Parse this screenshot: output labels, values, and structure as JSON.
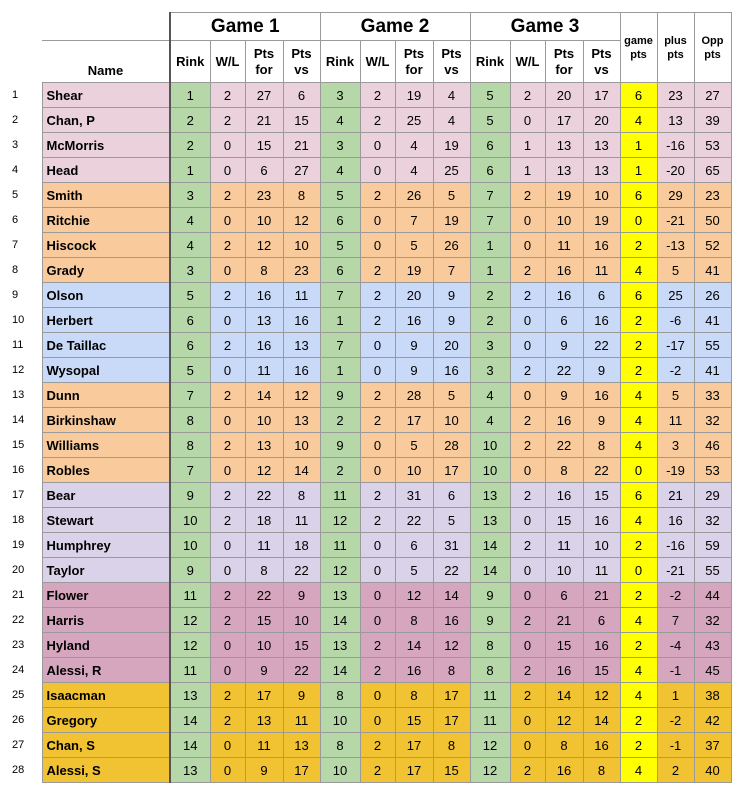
{
  "header": {
    "games": [
      "Game 1",
      "Game 2",
      "Game 3"
    ],
    "name_label": "Name",
    "game_cols": [
      "Rink",
      "W/L",
      "Pts\nfor",
      "Pts\nvs"
    ],
    "summary_cols": [
      "game\npts",
      "plus\npts",
      "Opp\npts"
    ]
  },
  "colors": {
    "pink": "#ead1dc",
    "orange": "#f9cb9c",
    "blue": "#c9daf8",
    "lavender": "#d9d2e9",
    "rose": "#d5a6bd",
    "gold": "#f1c232",
    "rink_green": "#b6d7a8",
    "game_pts_yellow": "#ffff00"
  },
  "rows": [
    {
      "n": "1",
      "name": "Shear",
      "group": "pink",
      "g": [
        [
          "1",
          "2",
          "27",
          "6"
        ],
        [
          "3",
          "2",
          "19",
          "4"
        ],
        [
          "5",
          "2",
          "20",
          "17"
        ]
      ],
      "gp": "6",
      "plus": "23",
      "opp": "27"
    },
    {
      "n": "2",
      "name": "Chan, P",
      "group": "pink",
      "g": [
        [
          "2",
          "2",
          "21",
          "15"
        ],
        [
          "4",
          "2",
          "25",
          "4"
        ],
        [
          "5",
          "0",
          "17",
          "20"
        ]
      ],
      "gp": "4",
      "plus": "13",
      "opp": "39"
    },
    {
      "n": "3",
      "name": "McMorris",
      "group": "pink",
      "g": [
        [
          "2",
          "0",
          "15",
          "21"
        ],
        [
          "3",
          "0",
          "4",
          "19"
        ],
        [
          "6",
          "1",
          "13",
          "13"
        ]
      ],
      "gp": "1",
      "plus": "-16",
      "opp": "53"
    },
    {
      "n": "4",
      "name": "Head",
      "group": "pink",
      "g": [
        [
          "1",
          "0",
          "6",
          "27"
        ],
        [
          "4",
          "0",
          "4",
          "25"
        ],
        [
          "6",
          "1",
          "13",
          "13"
        ]
      ],
      "gp": "1",
      "plus": "-20",
      "opp": "65"
    },
    {
      "n": "5",
      "name": "Smith",
      "group": "orange",
      "g": [
        [
          "3",
          "2",
          "23",
          "8"
        ],
        [
          "5",
          "2",
          "26",
          "5"
        ],
        [
          "7",
          "2",
          "19",
          "10"
        ]
      ],
      "gp": "6",
      "plus": "29",
      "opp": "23"
    },
    {
      "n": "6",
      "name": "Ritchie",
      "group": "orange",
      "g": [
        [
          "4",
          "0",
          "10",
          "12"
        ],
        [
          "6",
          "0",
          "7",
          "19"
        ],
        [
          "7",
          "0",
          "10",
          "19"
        ]
      ],
      "gp": "0",
      "plus": "-21",
      "opp": "50"
    },
    {
      "n": "7",
      "name": "Hiscock",
      "group": "orange",
      "g": [
        [
          "4",
          "2",
          "12",
          "10"
        ],
        [
          "5",
          "0",
          "5",
          "26"
        ],
        [
          "1",
          "0",
          "11",
          "16"
        ]
      ],
      "gp": "2",
      "plus": "-13",
      "opp": "52"
    },
    {
      "n": "8",
      "name": "Grady",
      "group": "orange",
      "g": [
        [
          "3",
          "0",
          "8",
          "23"
        ],
        [
          "6",
          "2",
          "19",
          "7"
        ],
        [
          "1",
          "2",
          "16",
          "11"
        ]
      ],
      "gp": "4",
      "plus": "5",
      "opp": "41"
    },
    {
      "n": "9",
      "name": "Olson",
      "group": "blue",
      "g": [
        [
          "5",
          "2",
          "16",
          "11"
        ],
        [
          "7",
          "2",
          "20",
          "9"
        ],
        [
          "2",
          "2",
          "16",
          "6"
        ]
      ],
      "gp": "6",
      "plus": "25",
      "opp": "26"
    },
    {
      "n": "10",
      "name": "Herbert",
      "group": "blue",
      "g": [
        [
          "6",
          "0",
          "13",
          "16"
        ],
        [
          "1",
          "2",
          "16",
          "9"
        ],
        [
          "2",
          "0",
          "6",
          "16"
        ]
      ],
      "gp": "2",
      "plus": "-6",
      "opp": "41"
    },
    {
      "n": "11",
      "name": "De Taillac",
      "group": "blue",
      "g": [
        [
          "6",
          "2",
          "16",
          "13"
        ],
        [
          "7",
          "0",
          "9",
          "20"
        ],
        [
          "3",
          "0",
          "9",
          "22"
        ]
      ],
      "gp": "2",
      "plus": "-17",
      "opp": "55"
    },
    {
      "n": "12",
      "name": "Wysopal",
      "group": "blue",
      "g": [
        [
          "5",
          "0",
          "11",
          "16"
        ],
        [
          "1",
          "0",
          "9",
          "16"
        ],
        [
          "3",
          "2",
          "22",
          "9"
        ]
      ],
      "gp": "2",
      "plus": "-2",
      "opp": "41"
    },
    {
      "n": "13",
      "name": "Dunn",
      "group": "orange",
      "g": [
        [
          "7",
          "2",
          "14",
          "12"
        ],
        [
          "9",
          "2",
          "28",
          "5"
        ],
        [
          "4",
          "0",
          "9",
          "16"
        ]
      ],
      "gp": "4",
      "plus": "5",
      "opp": "33"
    },
    {
      "n": "14",
      "name": "Birkinshaw",
      "group": "orange",
      "g": [
        [
          "8",
          "0",
          "10",
          "13"
        ],
        [
          "2",
          "2",
          "17",
          "10"
        ],
        [
          "4",
          "2",
          "16",
          "9"
        ]
      ],
      "gp": "4",
      "plus": "11",
      "opp": "32"
    },
    {
      "n": "15",
      "name": "Williams",
      "group": "orange",
      "g": [
        [
          "8",
          "2",
          "13",
          "10"
        ],
        [
          "9",
          "0",
          "5",
          "28"
        ],
        [
          "10",
          "2",
          "22",
          "8"
        ]
      ],
      "gp": "4",
      "plus": "3",
      "opp": "46"
    },
    {
      "n": "16",
      "name": "Robles",
      "group": "orange",
      "g": [
        [
          "7",
          "0",
          "12",
          "14"
        ],
        [
          "2",
          "0",
          "10",
          "17"
        ],
        [
          "10",
          "0",
          "8",
          "22"
        ]
      ],
      "gp": "0",
      "plus": "-19",
      "opp": "53"
    },
    {
      "n": "17",
      "name": "Bear",
      "group": "lavender",
      "g": [
        [
          "9",
          "2",
          "22",
          "8"
        ],
        [
          "11",
          "2",
          "31",
          "6"
        ],
        [
          "13",
          "2",
          "16",
          "15"
        ]
      ],
      "gp": "6",
      "plus": "21",
      "opp": "29"
    },
    {
      "n": "18",
      "name": "Stewart",
      "group": "lavender",
      "g": [
        [
          "10",
          "2",
          "18",
          "11"
        ],
        [
          "12",
          "2",
          "22",
          "5"
        ],
        [
          "13",
          "0",
          "15",
          "16"
        ]
      ],
      "gp": "4",
      "plus": "16",
      "opp": "32"
    },
    {
      "n": "19",
      "name": "Humphrey",
      "group": "lavender",
      "g": [
        [
          "10",
          "0",
          "11",
          "18"
        ],
        [
          "11",
          "0",
          "6",
          "31"
        ],
        [
          "14",
          "2",
          "11",
          "10"
        ]
      ],
      "gp": "2",
      "plus": "-16",
      "opp": "59"
    },
    {
      "n": "20",
      "name": "Taylor",
      "group": "lavender",
      "g": [
        [
          "9",
          "0",
          "8",
          "22"
        ],
        [
          "12",
          "0",
          "5",
          "22"
        ],
        [
          "14",
          "0",
          "10",
          "11"
        ]
      ],
      "gp": "0",
      "plus": "-21",
      "opp": "55"
    },
    {
      "n": "21",
      "name": "Flower",
      "group": "rose",
      "g": [
        [
          "11",
          "2",
          "22",
          "9"
        ],
        [
          "13",
          "0",
          "12",
          "14"
        ],
        [
          "9",
          "0",
          "6",
          "21"
        ]
      ],
      "gp": "2",
      "plus": "-2",
      "opp": "44"
    },
    {
      "n": "22",
      "name": "Harris",
      "group": "rose",
      "g": [
        [
          "12",
          "2",
          "15",
          "10"
        ],
        [
          "14",
          "0",
          "8",
          "16"
        ],
        [
          "9",
          "2",
          "21",
          "6"
        ]
      ],
      "gp": "4",
      "plus": "7",
      "opp": "32"
    },
    {
      "n": "23",
      "name": "Hyland",
      "group": "rose",
      "g": [
        [
          "12",
          "0",
          "10",
          "15"
        ],
        [
          "13",
          "2",
          "14",
          "12"
        ],
        [
          "8",
          "0",
          "15",
          "16"
        ]
      ],
      "gp": "2",
      "plus": "-4",
      "opp": "43"
    },
    {
      "n": "24",
      "name": "Alessi, R",
      "group": "rose",
      "g": [
        [
          "11",
          "0",
          "9",
          "22"
        ],
        [
          "14",
          "2",
          "16",
          "8"
        ],
        [
          "8",
          "2",
          "16",
          "15"
        ]
      ],
      "gp": "4",
      "plus": "-1",
      "opp": "45"
    },
    {
      "n": "25",
      "name": "Isaacman",
      "group": "gold",
      "g": [
        [
          "13",
          "2",
          "17",
          "9"
        ],
        [
          "8",
          "0",
          "8",
          "17"
        ],
        [
          "11",
          "2",
          "14",
          "12"
        ]
      ],
      "gp": "4",
      "plus": "1",
      "opp": "38"
    },
    {
      "n": "26",
      "name": "Gregory",
      "group": "gold",
      "g": [
        [
          "14",
          "2",
          "13",
          "11"
        ],
        [
          "10",
          "0",
          "15",
          "17"
        ],
        [
          "11",
          "0",
          "12",
          "14"
        ]
      ],
      "gp": "2",
      "plus": "-2",
      "opp": "42"
    },
    {
      "n": "27",
      "name": "Chan, S",
      "group": "gold",
      "g": [
        [
          "14",
          "0",
          "11",
          "13"
        ],
        [
          "8",
          "2",
          "17",
          "8"
        ],
        [
          "12",
          "0",
          "8",
          "16"
        ]
      ],
      "gp": "2",
      "plus": "-1",
      "opp": "37"
    },
    {
      "n": "28",
      "name": "Alessi, S",
      "group": "gold",
      "g": [
        [
          "13",
          "0",
          "9",
          "17"
        ],
        [
          "10",
          "2",
          "17",
          "15"
        ],
        [
          "12",
          "2",
          "16",
          "8"
        ]
      ],
      "gp": "4",
      "plus": "2",
      "opp": "40"
    }
  ]
}
